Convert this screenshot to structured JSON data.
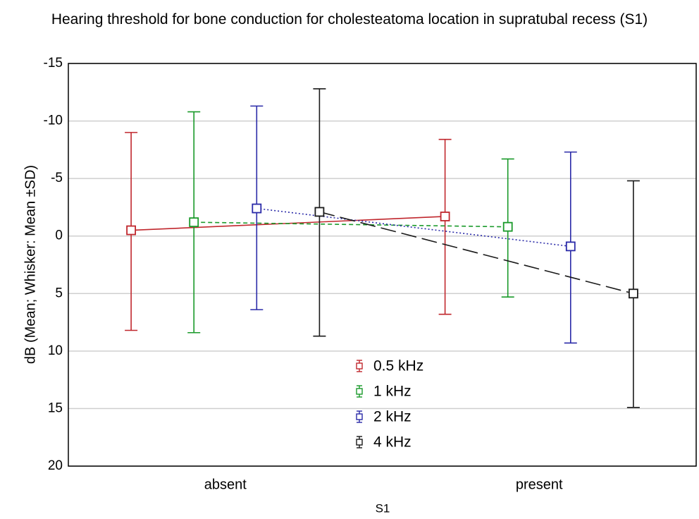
{
  "chart_data": {
    "type": "errorbar-line",
    "title": "Hearing threshold for bone conduction for cholesteatoma location in supratubal recess (S1)",
    "x_label": "S1",
    "y_label": "dB (Mean; Whisker: Mean ±SD)",
    "categories": [
      "absent",
      "present"
    ],
    "ylim": [
      -15,
      20
    ],
    "y_reversed": true,
    "yticks": [
      -15,
      -10,
      -5,
      0,
      5,
      10,
      15,
      20
    ],
    "grid": true,
    "legend_position": "lower center",
    "series": [
      {
        "name": "0.5 kHz",
        "color": "#c0272d",
        "line_style": "solid",
        "values": [
          -0.5,
          -1.7
        ],
        "whisker_low": [
          8.2,
          6.8
        ],
        "whisker_high": [
          -9.0,
          -8.4
        ]
      },
      {
        "name": "1 kHz",
        "color": "#1a9a2a",
        "line_style": "dashed",
        "values": [
          -1.2,
          -0.8
        ],
        "whisker_low": [
          8.4,
          5.3
        ],
        "whisker_high": [
          -10.8,
          -6.7
        ]
      },
      {
        "name": "2 kHz",
        "color": "#2a2aa8",
        "line_style": "dotted",
        "values": [
          -2.4,
          0.9
        ],
        "whisker_low": [
          6.4,
          9.3
        ],
        "whisker_high": [
          -11.3,
          -7.3
        ]
      },
      {
        "name": "4 kHz",
        "color": "#1a1a1a",
        "line_style": "longdash",
        "values": [
          -2.1,
          5.0
        ],
        "whisker_low": [
          8.7,
          14.9
        ],
        "whisker_high": [
          -12.8,
          -4.8
        ]
      }
    ]
  }
}
